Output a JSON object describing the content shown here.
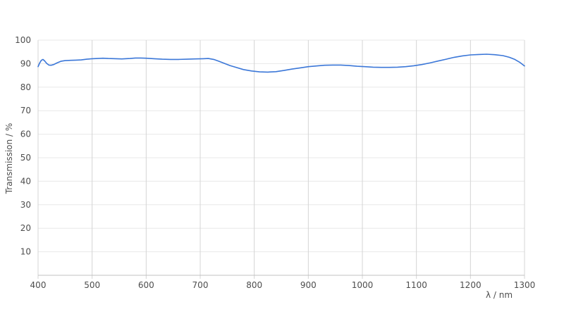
{
  "chart_data": {
    "type": "line",
    "title": "",
    "xlabel": "λ / nm",
    "ylabel": "Transmission / %",
    "xlim": [
      400,
      1300
    ],
    "ylim": [
      0,
      100
    ],
    "xticks": [
      400,
      500,
      600,
      700,
      800,
      900,
      1000,
      1100,
      1200,
      1300
    ],
    "yticks": [
      10,
      20,
      30,
      40,
      50,
      60,
      70,
      80,
      90,
      100
    ],
    "grid": true,
    "legend_position": "none",
    "series": [
      {
        "name": "Transmission",
        "color": "#3b77d8",
        "x": [
          400,
          403,
          406,
          409,
          412,
          416,
          420,
          424,
          429,
          435,
          442,
          450,
          460,
          470,
          480,
          490,
          500,
          510,
          520,
          530,
          545,
          555,
          570,
          580,
          590,
          600,
          615,
          630,
          645,
          660,
          675,
          690,
          705,
          715,
          725,
          735,
          745,
          755,
          765,
          780,
          795,
          810,
          825,
          840,
          855,
          870,
          885,
          900,
          915,
          930,
          945,
          960,
          975,
          990,
          1005,
          1020,
          1035,
          1050,
          1065,
          1080,
          1095,
          1110,
          1125,
          1140,
          1155,
          1170,
          1185,
          1200,
          1215,
          1230,
          1245,
          1260,
          1272,
          1282,
          1291,
          1300
        ],
        "y": [
          88.7,
          90.3,
          91.4,
          91.8,
          91.2,
          90.1,
          89.4,
          89.3,
          89.6,
          90.3,
          91.0,
          91.3,
          91.4,
          91.5,
          91.6,
          91.9,
          92.1,
          92.2,
          92.3,
          92.2,
          92.1,
          92.0,
          92.2,
          92.4,
          92.4,
          92.3,
          92.1,
          91.9,
          91.8,
          91.8,
          91.9,
          92.0,
          92.1,
          92.2,
          91.8,
          91.0,
          90.1,
          89.2,
          88.5,
          87.5,
          86.9,
          86.5,
          86.4,
          86.6,
          87.1,
          87.7,
          88.2,
          88.7,
          89.0,
          89.3,
          89.4,
          89.4,
          89.2,
          88.9,
          88.7,
          88.5,
          88.4,
          88.4,
          88.5,
          88.7,
          89.1,
          89.6,
          90.3,
          91.1,
          91.9,
          92.7,
          93.3,
          93.7,
          93.9,
          94.0,
          93.8,
          93.4,
          92.7,
          91.8,
          90.6,
          89.0
        ]
      }
    ]
  },
  "colors": {
    "background": "#ffffff",
    "h_grid": "#e8e8e8",
    "v_grid": "#d4d4d4",
    "axis": "#c0c0c0",
    "tick_text": "#4d4d4d",
    "line": "#3b77d8"
  }
}
